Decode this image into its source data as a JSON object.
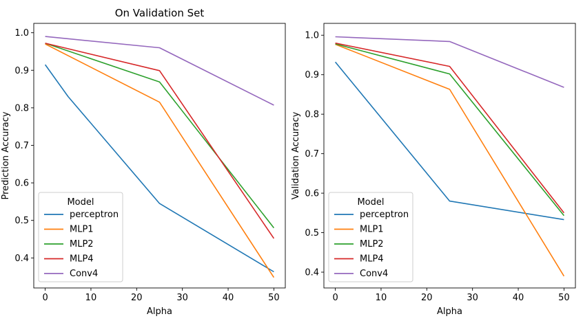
{
  "chart_data": [
    {
      "type": "line",
      "title": "On Validation Set",
      "xlabel": "Alpha",
      "ylabel": "Prediction Accuracy",
      "xlim": [
        -2.5,
        52.5
      ],
      "ylim": [
        0.32,
        1.025
      ],
      "xticks": [
        0,
        10,
        20,
        30,
        40,
        50
      ],
      "yticks": [
        0.4,
        0.5,
        0.6,
        0.7,
        0.8,
        0.9,
        1.0
      ],
      "grid": false,
      "legend": {
        "title": "Model",
        "position": "lower-left"
      },
      "series": [
        {
          "name": "perceptron",
          "color": "#1f77b4",
          "x": [
            0,
            5,
            25,
            50
          ],
          "y": [
            0.915,
            0.83,
            0.545,
            0.363
          ]
        },
        {
          "name": "MLP1",
          "color": "#ff7f0e",
          "x": [
            0,
            25,
            50
          ],
          "y": [
            0.97,
            0.815,
            0.348
          ]
        },
        {
          "name": "MLP2",
          "color": "#2ca02c",
          "x": [
            0,
            25,
            50
          ],
          "y": [
            0.972,
            0.869,
            0.48
          ]
        },
        {
          "name": "MLP4",
          "color": "#d62728",
          "x": [
            0,
            25,
            50
          ],
          "y": [
            0.972,
            0.899,
            0.452
          ]
        },
        {
          "name": "Conv4",
          "color": "#9467bd",
          "x": [
            0,
            25,
            50
          ],
          "y": [
            0.99,
            0.96,
            0.807
          ]
        }
      ]
    },
    {
      "type": "line",
      "title": "",
      "xlabel": "Alpha",
      "ylabel": "Validation Accuracy",
      "xlim": [
        -2.5,
        52.5
      ],
      "ylim": [
        0.36,
        1.03
      ],
      "xticks": [
        0,
        10,
        20,
        30,
        40,
        50
      ],
      "yticks": [
        0.4,
        0.5,
        0.6,
        0.7,
        0.8,
        0.9,
        1.0
      ],
      "grid": false,
      "legend": {
        "title": "Model",
        "position": "lower-left"
      },
      "series": [
        {
          "name": "perceptron",
          "color": "#1f77b4",
          "x": [
            0,
            25,
            50
          ],
          "y": [
            0.932,
            0.58,
            0.533
          ]
        },
        {
          "name": "MLP1",
          "color": "#ff7f0e",
          "x": [
            0,
            25,
            50
          ],
          "y": [
            0.977,
            0.863,
            0.39
          ]
        },
        {
          "name": "MLP2",
          "color": "#2ca02c",
          "x": [
            0,
            25,
            50
          ],
          "y": [
            0.978,
            0.902,
            0.543
          ]
        },
        {
          "name": "MLP4",
          "color": "#d62728",
          "x": [
            0,
            25,
            50
          ],
          "y": [
            0.98,
            0.921,
            0.55
          ]
        },
        {
          "name": "Conv4",
          "color": "#9467bd",
          "x": [
            0,
            25,
            50
          ],
          "y": [
            0.996,
            0.984,
            0.868
          ]
        }
      ]
    }
  ]
}
